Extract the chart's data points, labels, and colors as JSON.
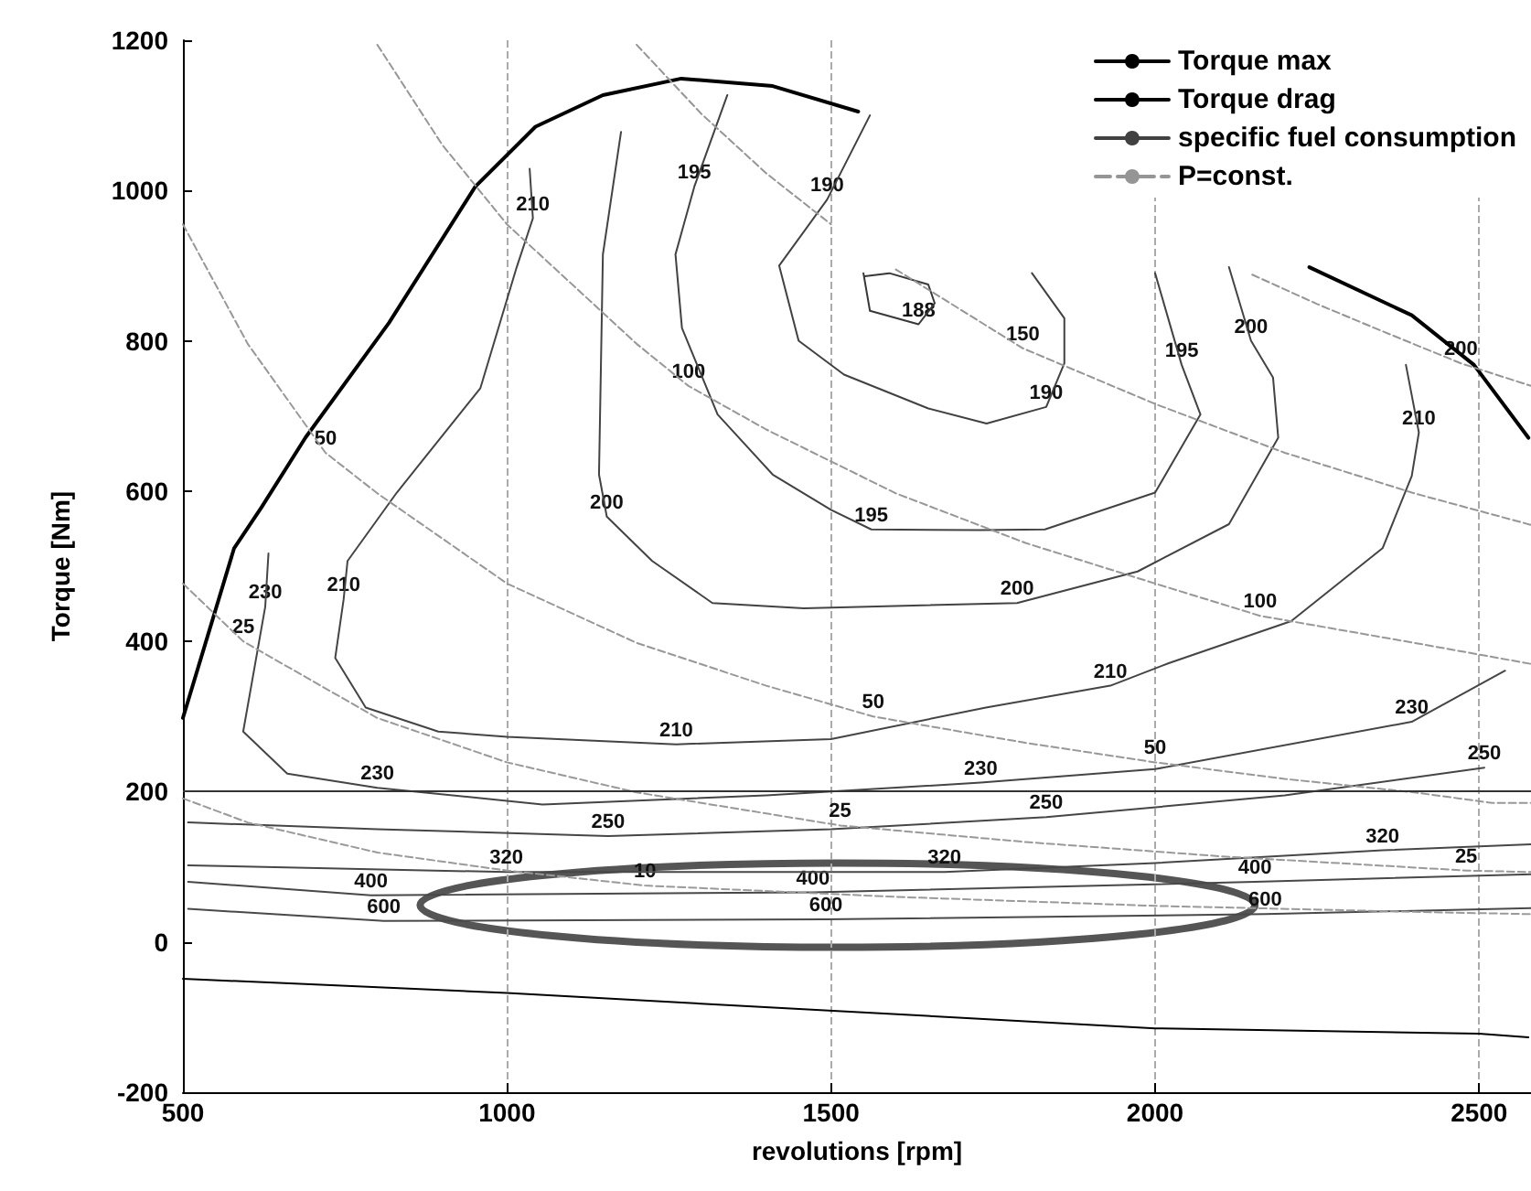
{
  "chart_data": {
    "type": "line",
    "xlabel": "revolutions [rpm]",
    "ylabel": "Torque [Nm]",
    "xlim": [
      500,
      2580
    ],
    "ylim": [
      -200,
      1200
    ],
    "xticks": [
      500,
      1000,
      1500,
      2000,
      2500
    ],
    "yticks": [
      -200,
      0,
      200,
      400,
      600,
      800,
      1000,
      1200
    ],
    "grid": "x",
    "legend": "top right",
    "marker": "none",
    "line_style": "solid",
    "ref_lines": [
      {
        "axis": "y",
        "value": 200,
        "color": "#333333"
      }
    ],
    "series": [
      {
        "name": "Torque max",
        "color": "#000000",
        "x": [
          500,
          579,
          621,
          689,
          818,
          951,
          1044,
          1148,
          1269,
          1410,
          1542,
          1900,
          2238,
          2396,
          2492,
          2576
        ],
        "values": [
          298,
          524,
          578,
          671,
          824,
          1005,
          1085,
          1127,
          1149,
          1139,
          1105,
          null,
          898,
          834,
          768,
          671
        ]
      },
      {
        "name": "Torque drag",
        "color": "#010101",
        "x": [
          500,
          1000,
          2000,
          2500,
          2576
        ],
        "values": [
          -49,
          -68,
          -115,
          -122,
          -127
        ]
      },
      {
        "name": "specific fuel consumption",
        "color": "#414141",
        "x": [
          1560,
          1494,
          1420,
          1450,
          1520,
          1650,
          1740,
          1832,
          1860,
          1860,
          1810
        ],
        "values": [
          1100,
          988,
          900,
          800,
          755,
          710,
          690,
          712,
          770,
          830,
          890
        ]
      },
      {
        "color": "#383838",
        "x": [
          1550,
          1560,
          1635,
          1660,
          1650,
          1590,
          1552
        ],
        "values": [
          890,
          840,
          822,
          850,
          875,
          890,
          886
        ]
      },
      {
        "color": "#424242",
        "x": [
          1340,
          1289,
          1260,
          1270,
          1325,
          1410,
          1500,
          1562,
          1730,
          1830,
          2000,
          2070,
          2041,
          2000
        ],
        "values": [
          1127,
          1005,
          915,
          817,
          702,
          622,
          575,
          549,
          548,
          549,
          598,
          702,
          768,
          890
        ]
      },
      {
        "color": "#434343",
        "x": [
          1176,
          1148,
          1142,
          1154,
          1224,
          1317,
          1458,
          1787,
          1973,
          2114,
          2190,
          2182,
          2148,
          2114
        ],
        "values": [
          1078,
          915,
          622,
          566,
          507,
          451,
          444,
          451,
          493,
          556,
          671,
          751,
          800,
          898
        ]
      },
      {
        "color": "#444444",
        "x": [
          1035,
          1040,
          1015,
          959,
          830,
          754,
          748,
          735,
          782,
          894,
          1000,
          1261,
          1500,
          1739,
          1931,
          2021,
          2210,
          2351,
          2396,
          2407,
          2387
        ],
        "values": [
          1029,
          963,
          898,
          737,
          598,
          507,
          456,
          378,
          312,
          280,
          273,
          263,
          270,
          312,
          341,
          371,
          427,
          524,
          620,
          678,
          768
        ]
      },
      {
        "color": "#454545",
        "x": [
          632,
          627,
          593,
          661,
          800,
          1055,
          1400,
          1731,
          2000,
          2396,
          2540
        ],
        "values": [
          517,
          446,
          280,
          224,
          205,
          183,
          195,
          212,
          230,
          293,
          361
        ]
      },
      {
        "color": "#464646",
        "x": [
          508,
          800,
          1156,
          1500,
          1832,
          2200,
          2508
        ],
        "values": [
          159,
          150,
          141,
          150,
          166,
          195,
          232
        ]
      },
      {
        "color": "#474747",
        "x": [
          508,
          999,
          1675,
          2000,
          2351,
          2580
        ],
        "values": [
          102,
          93,
          93,
          105,
          122,
          130
        ]
      },
      {
        "color": "#484848",
        "x": [
          508,
          790,
          1472,
          2154,
          2580
        ],
        "values": [
          80,
          62,
          66,
          80,
          90
        ]
      },
      {
        "color": "#494949",
        "x": [
          508,
          810,
          1492,
          2170,
          2580
        ],
        "values": [
          44,
          28,
          30,
          37,
          45
        ]
      },
      {
        "name": "P=const.",
        "color": "#959595",
        "line_style": "dashed",
        "x": [
          2150,
          2250,
          2350,
          2472,
          2580
        ],
        "values": [
          888,
          849,
          813,
          770,
          740
        ]
      },
      {
        "color": "#969696",
        "line_style": "dashed",
        "x": [
          1200,
          1300,
          1400,
          1500,
          1550,
          1600,
          1796,
          2000,
          2200,
          2400,
          2580
        ],
        "values": [
          1194,
          1102,
          1023,
          955,
          null,
          895,
          790,
          716,
          651,
          597,
          555
        ]
      },
      {
        "color": "#979797",
        "line_style": "dashed",
        "x": [
          800,
          900,
          1000,
          1200,
          1280,
          1400,
          1600,
          1800,
          2000,
          2162,
          2400,
          2580
        ],
        "values": [
          1194,
          1061,
          955,
          796,
          740,
          682,
          597,
          531,
          477,
          434,
          398,
          370
        ]
      },
      {
        "color": "#989898",
        "line_style": "dashed",
        "x": [
          500,
          600,
          720,
          800,
          1000,
          1200,
          1400,
          1565,
          1800,
          2000,
          2200,
          2400,
          2520,
          2580
        ],
        "values": [
          955,
          796,
          651,
          597,
          477,
          398,
          341,
          300,
          265,
          239,
          217,
          199,
          185,
          185
        ]
      },
      {
        "color": "#999999",
        "line_style": "dashed",
        "x": [
          500,
          593,
          800,
          1000,
          1200,
          1514,
          1800,
          2100,
          2400,
          2480,
          2580
        ],
        "values": [
          477,
          400,
          298,
          239,
          199,
          155,
          133,
          114,
          99,
          95,
          93
        ]
      },
      {
        "color": "#9a9a9a",
        "line_style": "dashed",
        "x": [
          500,
          600,
          800,
          1000,
          1213,
          1600,
          2000,
          2400,
          2580
        ],
        "values": [
          191,
          159,
          119,
          95,
          75,
          60,
          48,
          40,
          37
        ]
      }
    ],
    "annotations": [
      {
        "text": "210",
        "x": 1040,
        "y": 963
      },
      {
        "text": "195",
        "x": 1289,
        "y": 1005
      },
      {
        "text": "190",
        "x": 1494,
        "y": 988
      },
      {
        "text": "188",
        "x": 1635,
        "y": 822
      },
      {
        "text": "190",
        "x": 1832,
        "y": 712
      },
      {
        "text": "195",
        "x": 2041,
        "y": 768
      },
      {
        "text": "200",
        "x": 2148,
        "y": 800
      },
      {
        "text": "210",
        "x": 2407,
        "y": 678
      },
      {
        "text": "200",
        "x": 1154,
        "y": 566
      },
      {
        "text": "195",
        "x": 1562,
        "y": 549
      },
      {
        "text": "200",
        "x": 1787,
        "y": 451
      },
      {
        "text": "210",
        "x": 1931,
        "y": 341
      },
      {
        "text": "230",
        "x": 2396,
        "y": 293
      },
      {
        "text": "230",
        "x": 627,
        "y": 446
      },
      {
        "text": "210",
        "x": 748,
        "y": 456
      },
      {
        "text": "210",
        "x": 1261,
        "y": 263
      },
      {
        "text": "230",
        "x": 800,
        "y": 205
      },
      {
        "text": "250",
        "x": 1156,
        "y": 141
      },
      {
        "text": "230",
        "x": 1731,
        "y": 212
      },
      {
        "text": "250",
        "x": 1832,
        "y": 166
      },
      {
        "text": "250",
        "x": 2508,
        "y": 232
      },
      {
        "text": "320",
        "x": 999,
        "y": 93
      },
      {
        "text": "320",
        "x": 1675,
        "y": 93
      },
      {
        "text": "320",
        "x": 2351,
        "y": 122
      },
      {
        "text": "400",
        "x": 790,
        "y": 62
      },
      {
        "text": "600",
        "x": 810,
        "y": 28
      },
      {
        "text": "400",
        "x": 1472,
        "y": 66
      },
      {
        "text": "600",
        "x": 1492,
        "y": 30
      },
      {
        "text": "400",
        "x": 2154,
        "y": 80
      },
      {
        "text": "600",
        "x": 2170,
        "y": 37
      },
      {
        "text": "200",
        "x": 2472,
        "y": 770
      },
      {
        "text": "150",
        "x": 1796,
        "y": 790
      },
      {
        "text": "100",
        "x": 1280,
        "y": 740
      },
      {
        "text": "100",
        "x": 2162,
        "y": 434
      },
      {
        "text": "50",
        "x": 720,
        "y": 651
      },
      {
        "text": "50",
        "x": 1565,
        "y": 300
      },
      {
        "text": "50",
        "x": 2000,
        "y": 239
      },
      {
        "text": "25",
        "x": 1514,
        "y": 155
      },
      {
        "text": "25",
        "x": 2480,
        "y": 95
      },
      {
        "text": "25",
        "x": 593,
        "y": 400
      },
      {
        "text": "10",
        "x": 1213,
        "y": 75
      }
    ]
  }
}
